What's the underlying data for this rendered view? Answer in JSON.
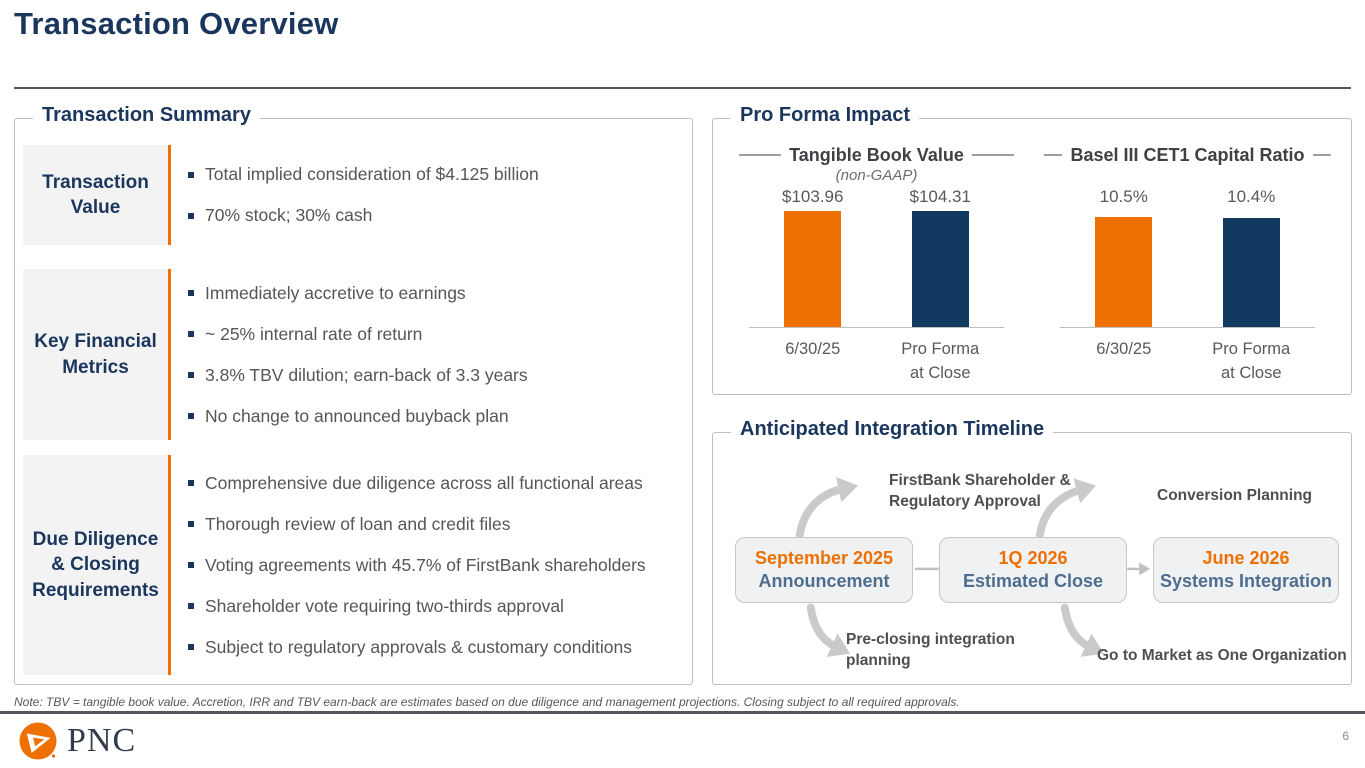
{
  "slide": {
    "title": "Transaction Overview",
    "footnote": "Note: TBV = tangible book value. Accretion, IRR and TBV earn-back are estimates based on due diligence and management projections. Closing subject to all required approvals.",
    "page_number": "6"
  },
  "brand": {
    "logo_text": "PNC"
  },
  "colors": {
    "navy": "#1B365D",
    "orange": "#ED7000",
    "bar_navy": "#12395F",
    "text_gray": "#53565A",
    "steel_blue": "#4E6E8F",
    "border_gray": "#BFBFBF",
    "arrow_gray": "#C9CACB"
  },
  "transaction_summary": {
    "title": "Transaction Summary",
    "rows": [
      {
        "label": "Transaction Value",
        "items": [
          "Total implied consideration of $4.125 billion",
          "70% stock; 30% cash"
        ]
      },
      {
        "label": "Key Financial Metrics",
        "items": [
          "Immediately accretive to earnings",
          "~ 25% internal rate of return",
          "3.8% TBV dilution; earn-back of 3.3 years",
          "No change to announced buyback plan"
        ]
      },
      {
        "label": "Due Diligence & Closing Requirements",
        "items": [
          "Comprehensive due diligence across all functional areas",
          "Thorough review of loan and credit files",
          "Voting agreements with 45.7% of FirstBank shareholders",
          "Shareholder vote requiring two-thirds approval",
          "Subject to regulatory approvals & customary conditions"
        ]
      }
    ]
  },
  "pro_forma": {
    "title": "Pro Forma Impact",
    "chart_data": [
      {
        "type": "bar",
        "title": "Tangible Book Value",
        "subtitle": "(non-GAAP)",
        "categories": [
          "6/30/25",
          "Pro Forma\nat Close"
        ],
        "values": [
          103.96,
          104.31
        ],
        "value_labels": [
          "$103.96",
          "$104.31"
        ],
        "bar_colors": [
          "#ED7000",
          "#12395F"
        ],
        "ylim": [
          0,
          104.31
        ],
        "grid": false,
        "legend": "none"
      },
      {
        "type": "bar",
        "title": "Basel III CET1 Capital Ratio",
        "subtitle": "",
        "categories": [
          "6/30/25",
          "Pro Forma\nat Close"
        ],
        "values": [
          10.5,
          10.4
        ],
        "value_labels": [
          "10.5%",
          "10.4%"
        ],
        "bar_colors": [
          "#ED7000",
          "#12395F"
        ],
        "ylim": [
          0,
          11.05
        ],
        "grid": false,
        "legend": "none"
      }
    ]
  },
  "timeline": {
    "title": "Anticipated Integration Timeline",
    "milestones": [
      {
        "date": "September 2025",
        "label": "Announcement"
      },
      {
        "date": "1Q 2026",
        "label": "Estimated Close"
      },
      {
        "date": "June 2026",
        "label": "Systems Integration"
      }
    ],
    "callouts_top": [
      "FirstBank Shareholder & Regulatory Approval",
      "Conversion Planning"
    ],
    "callouts_bottom": [
      "Pre-closing integration planning",
      "Go to Market as One Organization"
    ]
  }
}
